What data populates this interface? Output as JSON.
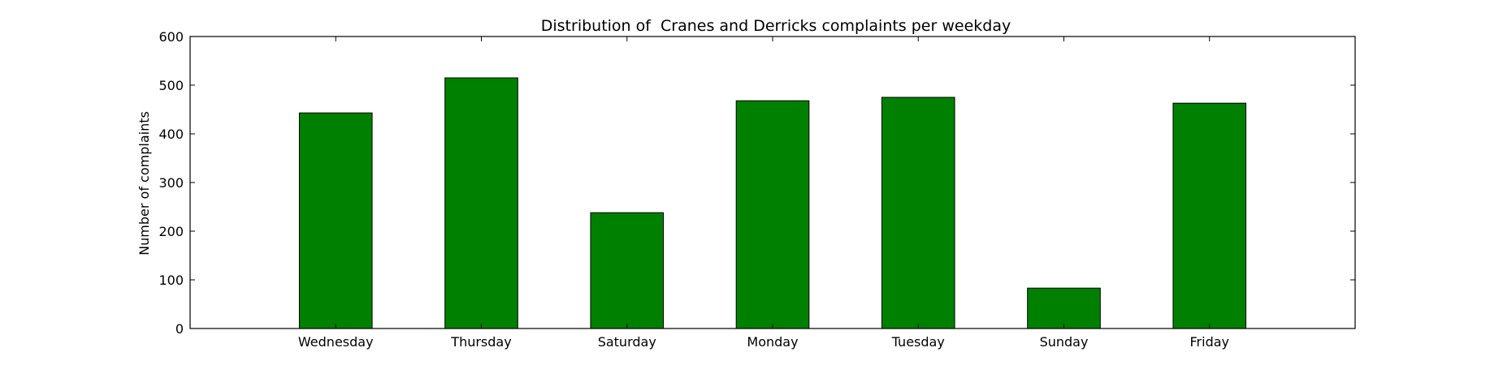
{
  "chart_data": {
    "type": "bar",
    "title": "Distribution of  Cranes and Derricks complaints per weekday",
    "xlabel": "",
    "ylabel": "Number of complaints",
    "categories": [
      "Wednesday",
      "Thursday",
      "Saturday",
      "Monday",
      "Tuesday",
      "Sunday",
      "Friday"
    ],
    "values": [
      443,
      515,
      238,
      468,
      475,
      83,
      463
    ],
    "ylim": [
      0,
      600
    ],
    "yticks": [
      0,
      100,
      200,
      300,
      400,
      500,
      600
    ],
    "grid": false,
    "legend": "none",
    "colors": {
      "bar": "#008000",
      "edge": "#000000"
    }
  }
}
